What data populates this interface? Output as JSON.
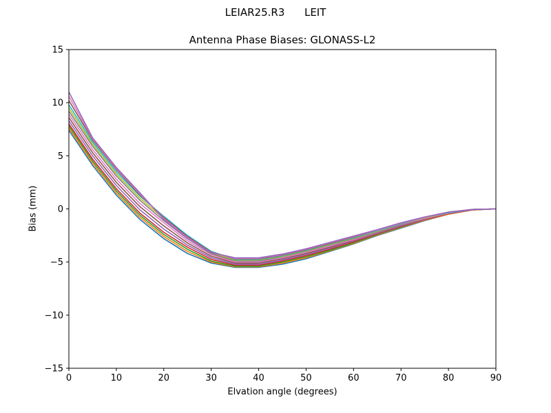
{
  "header": {
    "antenna": "LEIAR25.R3",
    "radome": "LEIT"
  },
  "chart_data": {
    "type": "line",
    "title": "Antenna Phase Biases: GLONASS-L2",
    "xlabel": "Elvation angle (degrees)",
    "ylabel": "Bias (mm)",
    "xlim": [
      0,
      90
    ],
    "ylim": [
      -15,
      15
    ],
    "xticks": [
      0,
      10,
      20,
      30,
      40,
      50,
      60,
      70,
      80,
      90
    ],
    "yticks": [
      -15,
      -10,
      -5,
      0,
      5,
      10,
      15
    ],
    "ytick_labels": [
      "−15",
      "−10",
      "−5",
      "0",
      "5",
      "10",
      "15"
    ],
    "grid": false,
    "legend": "none",
    "x": [
      0,
      5,
      10,
      15,
      20,
      25,
      30,
      35,
      40,
      45,
      50,
      55,
      60,
      65,
      70,
      75,
      80,
      85,
      90
    ],
    "series": [
      {
        "color": "#1f77b4",
        "values": [
          7.4,
          4.1,
          1.3,
          -1.0,
          -2.8,
          -4.2,
          -5.1,
          -5.5,
          -5.5,
          -5.2,
          -4.7,
          -4.0,
          -3.3,
          -2.5,
          -1.8,
          -1.1,
          -0.5,
          -0.1,
          0.0
        ]
      },
      {
        "color": "#ff7f0e",
        "values": [
          7.6,
          4.3,
          1.5,
          -0.8,
          -2.6,
          -4.0,
          -5.0,
          -5.45,
          -5.45,
          -5.1,
          -4.6,
          -3.95,
          -3.25,
          -2.45,
          -1.75,
          -1.05,
          -0.5,
          -0.1,
          0.0
        ]
      },
      {
        "color": "#2ca02c",
        "values": [
          7.8,
          4.5,
          1.7,
          -0.6,
          -2.4,
          -3.8,
          -4.9,
          -5.4,
          -5.4,
          -5.0,
          -4.5,
          -3.9,
          -3.2,
          -2.4,
          -1.7,
          -1.0,
          -0.45,
          -0.1,
          0.0
        ]
      },
      {
        "color": "#d62728",
        "values": [
          8.0,
          4.7,
          1.9,
          -0.4,
          -2.2,
          -3.6,
          -4.75,
          -5.3,
          -5.3,
          -4.9,
          -4.4,
          -3.8,
          -3.1,
          -2.35,
          -1.65,
          -1.0,
          -0.45,
          -0.1,
          0.0
        ]
      },
      {
        "color": "#9467bd",
        "values": [
          8.3,
          5.0,
          2.2,
          -0.1,
          -1.9,
          -3.4,
          -4.6,
          -5.2,
          -5.2,
          -4.8,
          -4.3,
          -3.7,
          -3.0,
          -2.3,
          -1.6,
          -0.95,
          -0.4,
          -0.05,
          0.0
        ]
      },
      {
        "color": "#8c564b",
        "values": [
          8.6,
          5.3,
          2.5,
          0.2,
          -1.6,
          -3.2,
          -4.45,
          -5.1,
          -5.1,
          -4.7,
          -4.2,
          -3.6,
          -2.95,
          -2.25,
          -1.55,
          -0.9,
          -0.4,
          -0.05,
          0.0
        ]
      },
      {
        "color": "#e377c2",
        "values": [
          8.9,
          5.6,
          2.8,
          0.5,
          -1.3,
          -3.0,
          -4.3,
          -5.0,
          -5.0,
          -4.6,
          -4.1,
          -3.5,
          -2.9,
          -2.2,
          -1.5,
          -0.9,
          -0.4,
          -0.05,
          0.0
        ]
      },
      {
        "color": "#7f7f7f",
        "values": [
          9.2,
          5.9,
          3.1,
          0.8,
          -1.1,
          -2.8,
          -4.2,
          -4.9,
          -4.9,
          -4.5,
          -4.0,
          -3.4,
          -2.8,
          -2.15,
          -1.45,
          -0.85,
          -0.35,
          -0.05,
          0.0
        ]
      },
      {
        "color": "#bcbd22",
        "values": [
          9.5,
          6.1,
          3.3,
          1.0,
          -0.9,
          -2.6,
          -4.1,
          -4.8,
          -4.8,
          -4.45,
          -3.95,
          -3.35,
          -2.75,
          -2.1,
          -1.4,
          -0.85,
          -0.35,
          -0.05,
          0.0
        ]
      },
      {
        "color": "#17becf",
        "values": [
          9.8,
          6.3,
          3.5,
          1.2,
          -0.7,
          -2.5,
          -4.0,
          -4.75,
          -4.75,
          -4.4,
          -3.9,
          -3.3,
          -2.7,
          -2.05,
          -1.4,
          -0.8,
          -0.35,
          -0.05,
          0.0
        ]
      },
      {
        "color": "#8c564b",
        "values": [
          10.2,
          6.5,
          3.7,
          1.3,
          -0.8,
          -2.6,
          -4.05,
          -4.7,
          -4.7,
          -4.35,
          -3.85,
          -3.25,
          -2.65,
          -2.0,
          -1.35,
          -0.8,
          -0.3,
          -0.05,
          0.0
        ]
      },
      {
        "color": "#e377c2",
        "values": [
          10.6,
          6.6,
          3.8,
          1.4,
          -0.9,
          -2.7,
          -4.1,
          -4.65,
          -4.65,
          -4.3,
          -3.8,
          -3.2,
          -2.6,
          -2.0,
          -1.35,
          -0.8,
          -0.3,
          -0.05,
          0.0
        ]
      },
      {
        "color": "#9467bd",
        "values": [
          11.0,
          6.7,
          3.9,
          1.5,
          -1.0,
          -2.8,
          -4.1,
          -4.6,
          -4.6,
          -4.25,
          -3.75,
          -3.15,
          -2.55,
          -1.95,
          -1.3,
          -0.75,
          -0.3,
          -0.05,
          0.0
        ]
      }
    ]
  }
}
